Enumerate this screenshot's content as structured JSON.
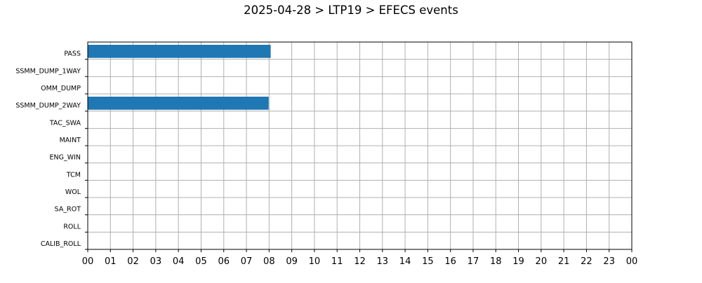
{
  "chart_data": {
    "type": "bar",
    "orientation": "horizontal-timeline",
    "title": "2025-04-28 > LTP19 > EFECS events",
    "xlabel": "",
    "ylabel": "",
    "x_tick_labels": [
      "00",
      "01",
      "02",
      "03",
      "04",
      "05",
      "06",
      "07",
      "08",
      "09",
      "10",
      "11",
      "12",
      "13",
      "14",
      "15",
      "16",
      "17",
      "18",
      "19",
      "20",
      "21",
      "22",
      "23",
      "00"
    ],
    "xlim_hours": [
      0,
      24
    ],
    "grid": true,
    "categories": [
      "PASS",
      "SSMM_DUMP_1WAY",
      "OMM_DUMP",
      "SSMM_DUMP_2WAY",
      "TAC_SWA",
      "MAINT",
      "ENG_WIN",
      "TCM",
      "WOL",
      "SA_ROT",
      "ROLL",
      "CALIB_ROLL"
    ],
    "events": [
      {
        "category": "PASS",
        "start_hour": 0.0,
        "end_hour": 8.07
      },
      {
        "category": "SSMM_DUMP_2WAY",
        "start_hour": 0.0,
        "end_hour": 7.98
      }
    ],
    "bar_color": "#1f77b4",
    "grid_color": "#b0b0b0"
  }
}
